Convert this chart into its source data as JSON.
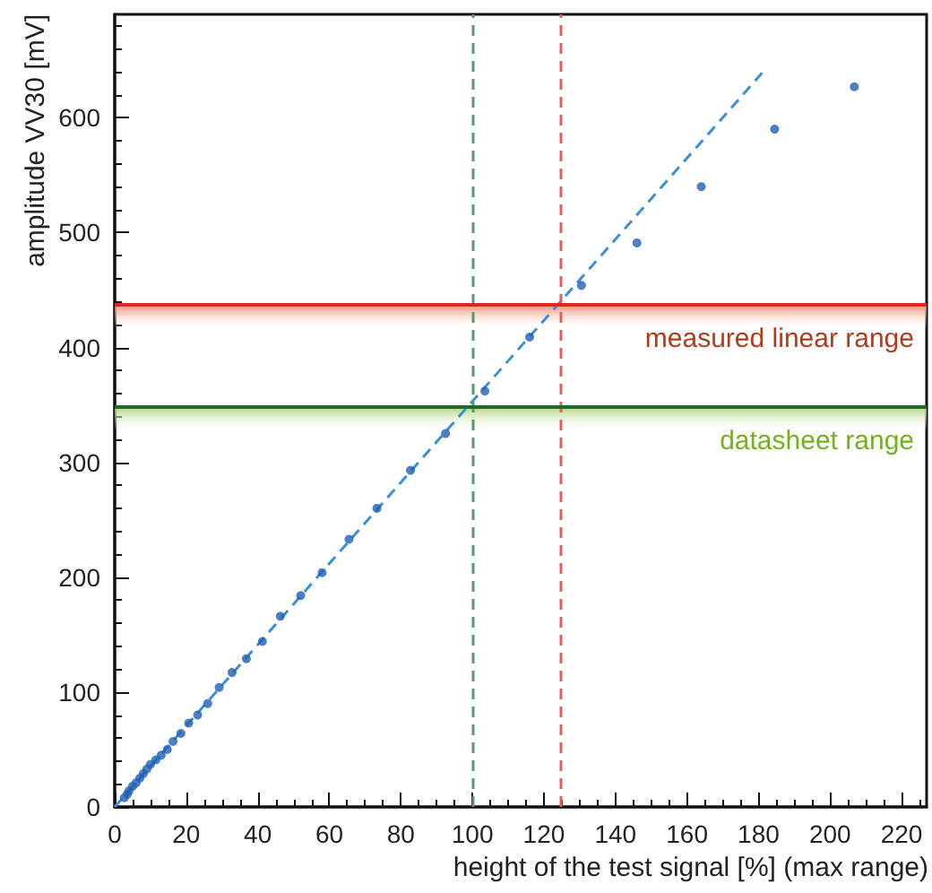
{
  "chart_data": {
    "type": "scatter",
    "xlabel": "height of the test signal [%] (max range)",
    "ylabel": "amplitude VV30 [mV]",
    "xlim": [
      0,
      227
    ],
    "ylim": [
      0,
      690
    ],
    "xticks": [
      0,
      20,
      40,
      60,
      80,
      100,
      120,
      140,
      160,
      180,
      200,
      220
    ],
    "yticks": [
      0,
      100,
      200,
      300,
      400,
      500,
      600
    ],
    "grid": false,
    "marker": "circle",
    "series": [
      {
        "color": "#1f5fb4",
        "x": [
          2.7,
          3.5,
          4,
          5,
          6,
          7,
          8,
          9,
          10,
          11.5,
          13,
          14.7,
          16.3,
          18.5,
          20.7,
          23.2,
          26,
          29.2,
          32.8,
          36.8,
          41.3,
          46.3,
          52,
          58,
          65.5,
          73.3,
          82.7,
          92.5,
          103.5,
          116,
          130.5,
          146,
          164,
          184.5,
          206.8
        ],
        "values": [
          8,
          11,
          14,
          18,
          21,
          25,
          29,
          33,
          37,
          41,
          45,
          50,
          57,
          64,
          73,
          80,
          90,
          104,
          117,
          129,
          144,
          166,
          184,
          204,
          233,
          260,
          293,
          325,
          362,
          409,
          454,
          491,
          540,
          590,
          627
        ]
      },
      {
        "type": "line",
        "color": "#3a8fd9",
        "marker": "none",
        "line_style": "dashed",
        "x": [
          0,
          181
        ],
        "values": [
          0,
          639
        ]
      }
    ],
    "ref_lines": [
      {
        "axis": "x",
        "value": 100,
        "color": "#5a9a6a",
        "line_style": "dashed"
      },
      {
        "axis": "x",
        "value": 124.5,
        "color": "#e06060",
        "line_style": "dashed"
      },
      {
        "axis": "y",
        "value": 438,
        "color": "#e8231f",
        "line_style": "solid"
      },
      {
        "axis": "y",
        "value": 349,
        "color": "#1e6b30",
        "line_style": "solid"
      }
    ],
    "bands": [
      {
        "axis": "y",
        "from": 416,
        "to": 438,
        "color": "#f08060",
        "label": "measured linear range"
      },
      {
        "axis": "y",
        "from": 327,
        "to": 349,
        "color": "#a8d070",
        "label": "datasheet range"
      }
    ]
  }
}
